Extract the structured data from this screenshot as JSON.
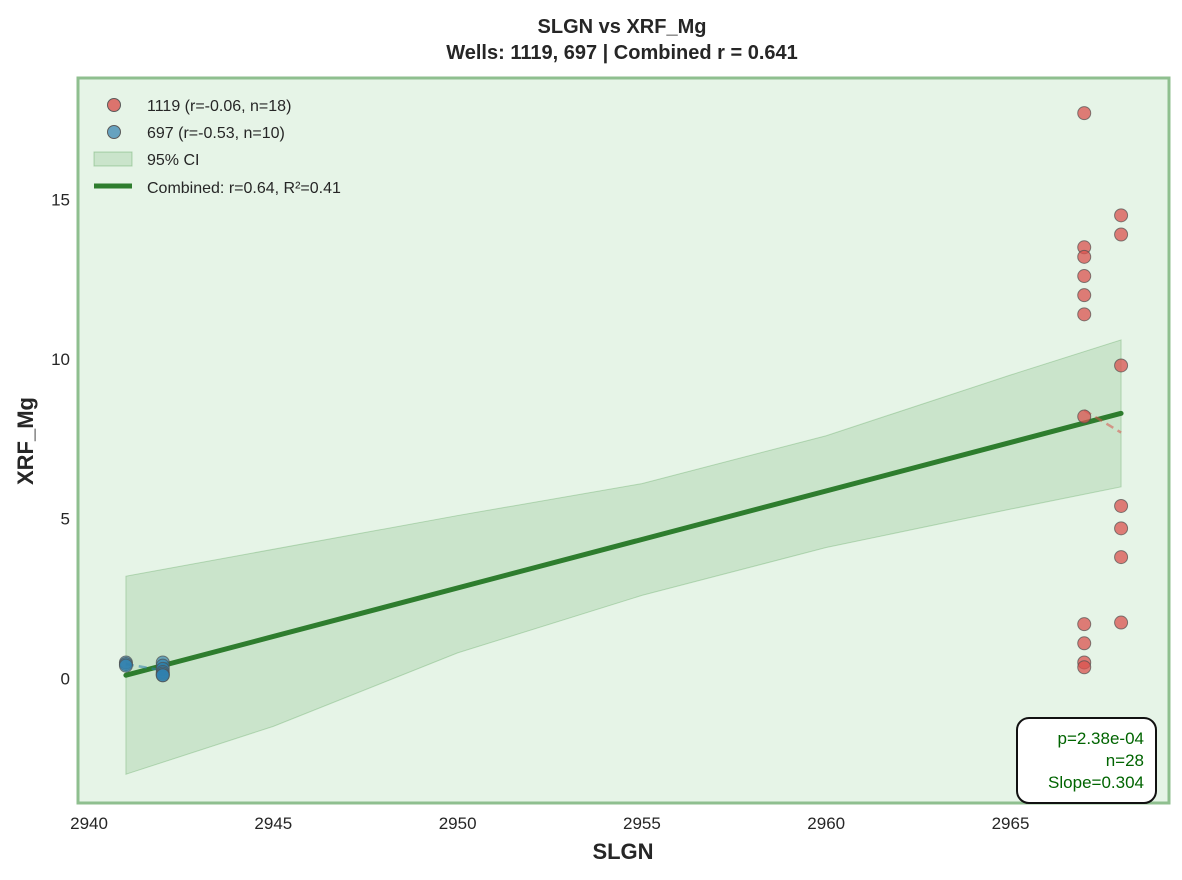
{
  "chart_data": {
    "type": "scatter",
    "title": "SLGN vs XRF_Mg",
    "subtitle": "Wells: 1119, 697 | Combined r = 0.641",
    "xlabel": "SLGN",
    "ylabel": "XRF_Mg",
    "xlim": [
      2939.7,
      2969.3
    ],
    "ylim": [
      -3.9,
      18.8
    ],
    "xticks": [
      2940,
      2945,
      2950,
      2955,
      2960,
      2965
    ],
    "yticks": [
      0,
      5,
      10,
      15
    ],
    "grid": false,
    "legend_position": "top-left",
    "background_color": "#e6f4e7",
    "frame_color": "#8fbf8f",
    "series": [
      {
        "name": "1119 (r=-0.06, n=18)",
        "color": "#d9534f",
        "points": [
          [
            2967,
            17.7
          ],
          [
            2967,
            13.5
          ],
          [
            2967,
            13.2
          ],
          [
            2967,
            12.6
          ],
          [
            2967,
            12.0
          ],
          [
            2967,
            11.4
          ],
          [
            2967,
            8.2
          ],
          [
            2967,
            1.7
          ],
          [
            2967,
            1.1
          ],
          [
            2967,
            0.5
          ],
          [
            2967,
            0.35
          ],
          [
            2968,
            14.5
          ],
          [
            2968,
            13.9
          ],
          [
            2968,
            9.8
          ],
          [
            2968,
            5.4
          ],
          [
            2968,
            4.7
          ],
          [
            2968,
            3.8
          ],
          [
            2968,
            1.75
          ]
        ],
        "trend": [
          [
            2967,
            8.4
          ],
          [
            2968,
            7.7
          ]
        ]
      },
      {
        "name": "697 (r=-0.53, n=10)",
        "color": "#2f7fae",
        "points": [
          [
            2941,
            0.5
          ],
          [
            2941,
            0.45
          ],
          [
            2941,
            0.4
          ],
          [
            2942,
            0.5
          ],
          [
            2942,
            0.4
          ],
          [
            2942,
            0.3
          ],
          [
            2942,
            0.2
          ],
          [
            2942,
            0.15
          ],
          [
            2942,
            0.1
          ],
          [
            2942,
            0.1
          ]
        ],
        "trend": [
          [
            2941,
            0.45
          ],
          [
            2942,
            0.25
          ]
        ]
      }
    ],
    "ci": {
      "name": "95% CI",
      "color": "#2e8b2e",
      "upper": [
        [
          2941,
          3.2
        ],
        [
          2950,
          5.1
        ],
        [
          2955,
          6.1
        ],
        [
          2960,
          7.6
        ],
        [
          2965,
          9.5
        ],
        [
          2968,
          10.6
        ]
      ],
      "lower": [
        [
          2941,
          -3.0
        ],
        [
          2945,
          -1.5
        ],
        [
          2950,
          0.8
        ],
        [
          2955,
          2.6
        ],
        [
          2960,
          4.1
        ],
        [
          2965,
          5.3
        ],
        [
          2968,
          6.0
        ]
      ]
    },
    "regression": {
      "name": "Combined: r=0.64, R²=0.41",
      "color": "#2e7d2e",
      "line": [
        [
          2941,
          0.1
        ],
        [
          2968,
          8.3
        ]
      ]
    },
    "stats": [
      "p=2.38e-04",
      "n=28",
      "Slope=0.304"
    ]
  }
}
